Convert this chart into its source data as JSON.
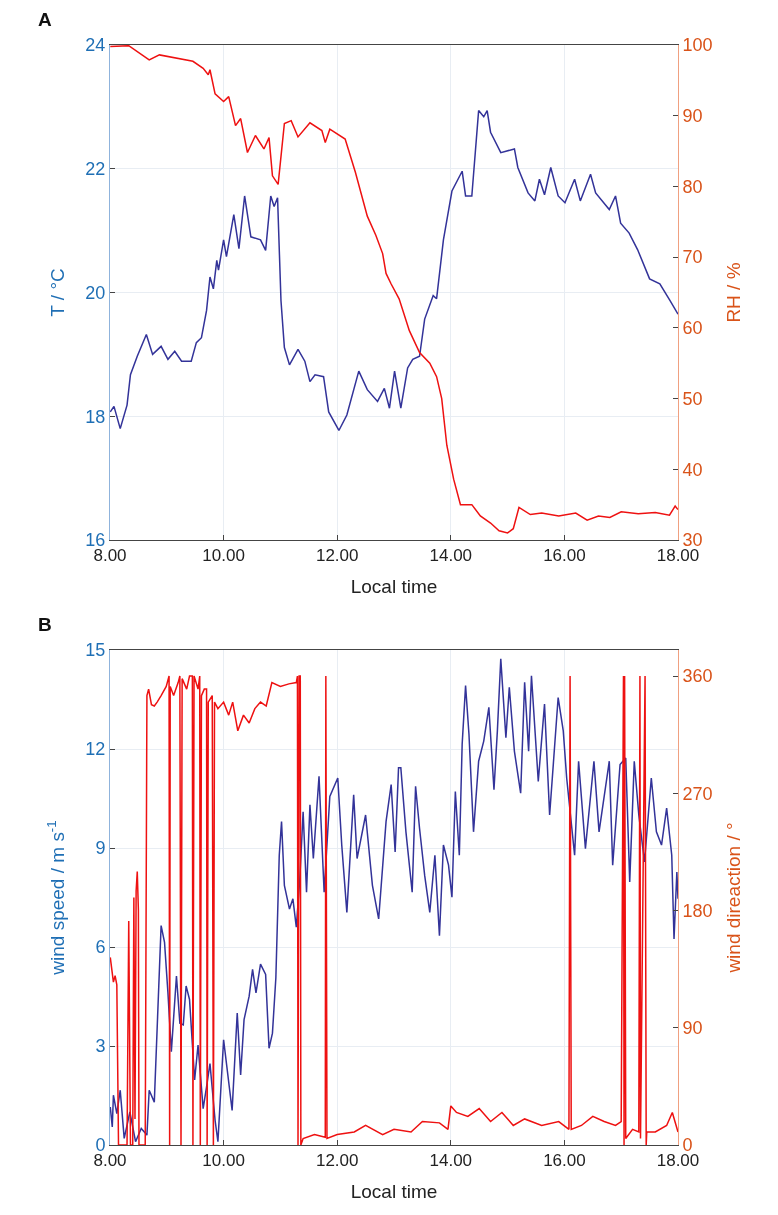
{
  "chart_data": [
    {
      "type": "line",
      "xlabel": "Local time",
      "ylabel": "T / °C",
      "y2label": "RH / %",
      "annotations": [
        "A"
      ],
      "xlim": [
        8,
        18
      ],
      "xticks": [
        {
          "value": 8,
          "label": "8.00"
        },
        {
          "value": 10,
          "label": "10.00"
        },
        {
          "value": 12,
          "label": "12.00"
        },
        {
          "value": 14,
          "label": "14.00"
        },
        {
          "value": 16,
          "label": "16.00"
        },
        {
          "value": 18,
          "label": "18.00"
        }
      ],
      "ylim": [
        16,
        24
      ],
      "yticks": [
        16,
        18,
        20,
        22,
        24
      ],
      "y2lim": [
        30,
        100
      ],
      "y2ticks": [
        30,
        40,
        50,
        60,
        70,
        80,
        90,
        100
      ],
      "grid": true,
      "line_style": "solid",
      "series": [
        {
          "color": "#333399",
          "x": [
            8.005,
            8.07,
            8.18,
            8.3,
            8.36,
            8.48,
            8.64,
            8.75,
            8.9,
            9.02,
            9.14,
            9.26,
            9.43,
            9.52,
            9.61,
            9.7,
            9.76,
            9.82,
            9.88,
            9.91,
            10.0,
            10.05,
            10.18,
            10.27,
            10.37,
            10.48,
            10.65,
            10.74,
            10.83,
            10.89,
            10.95,
            11.01,
            11.07,
            11.16,
            11.31,
            11.43,
            11.52,
            11.61,
            11.76,
            11.85,
            12.03,
            12.17,
            12.38,
            12.53,
            12.71,
            12.83,
            12.92,
            13.01,
            13.12,
            13.24,
            13.33,
            13.45,
            13.54,
            13.69,
            13.75,
            13.87,
            14.02,
            14.2,
            14.26,
            14.37,
            14.49,
            14.58,
            14.64,
            14.7,
            14.88,
            15.12,
            15.18,
            15.36,
            15.48,
            15.56,
            15.65,
            15.76,
            15.89,
            16.01,
            16.18,
            16.28,
            16.46,
            16.55,
            16.79,
            16.9,
            16.99,
            17.14,
            17.29,
            17.5,
            17.68,
            17.86,
            18.0
          ],
          "values": [
            18.07,
            18.16,
            17.8,
            18.18,
            18.67,
            18.97,
            19.32,
            19.0,
            19.13,
            18.92,
            19.05,
            18.89,
            18.89,
            19.19,
            19.27,
            19.71,
            20.25,
            20.06,
            20.52,
            20.36,
            20.85,
            20.58,
            21.26,
            20.71,
            21.56,
            20.9,
            20.85,
            20.68,
            21.56,
            21.39,
            21.53,
            19.87,
            19.11,
            18.83,
            19.08,
            18.89,
            18.56,
            18.67,
            18.64,
            18.07,
            17.77,
            18.02,
            18.73,
            18.43,
            18.24,
            18.45,
            18.13,
            18.73,
            18.13,
            18.78,
            18.92,
            18.97,
            19.57,
            19.95,
            19.9,
            20.85,
            21.64,
            21.96,
            21.56,
            21.56,
            22.94,
            22.84,
            22.94,
            22.59,
            22.26,
            22.32,
            22.02,
            21.61,
            21.48,
            21.83,
            21.58,
            22.02,
            21.56,
            21.45,
            21.83,
            21.48,
            21.91,
            21.61,
            21.34,
            21.56,
            21.12,
            20.96,
            20.69,
            20.22,
            20.14,
            19.87,
            19.65
          ]
        },
        {
          "color": "#ee1111",
          "axis": "y2",
          "x": [
            8.005,
            8.33,
            8.69,
            8.87,
            9.46,
            9.64,
            9.73,
            9.76,
            9.85,
            10.0,
            10.09,
            10.21,
            10.3,
            10.42,
            10.56,
            10.71,
            10.8,
            10.86,
            10.96,
            11.07,
            11.19,
            11.31,
            11.52,
            11.73,
            11.79,
            11.87,
            12.14,
            12.32,
            12.53,
            12.68,
            12.8,
            12.86,
            12.95,
            13.09,
            13.27,
            13.45,
            13.63,
            13.75,
            13.84,
            13.93,
            14.05,
            14.17,
            14.37,
            14.52,
            14.7,
            14.85,
            15.0,
            15.1,
            15.2,
            15.4,
            15.6,
            15.9,
            16.2,
            16.4,
            16.6,
            16.8,
            17.0,
            17.3,
            17.6,
            17.85,
            17.95,
            18.0
          ],
          "values": [
            99.8,
            99.9,
            97.9,
            98.6,
            97.7,
            96.7,
            95.8,
            96.5,
            93.1,
            92.0,
            92.7,
            88.6,
            89.6,
            84.8,
            87.2,
            85.3,
            86.9,
            81.5,
            80.3,
            88.9,
            89.3,
            87.0,
            89.0,
            87.9,
            86.2,
            88.1,
            86.7,
            82.0,
            75.8,
            73.1,
            70.5,
            67.7,
            66.2,
            64.1,
            59.6,
            56.5,
            55.0,
            53.1,
            50.0,
            43.4,
            38.6,
            35.0,
            35.0,
            33.4,
            32.4,
            31.3,
            31.0,
            31.6,
            34.6,
            33.6,
            33.8,
            33.4,
            33.8,
            32.8,
            33.4,
            33.2,
            34.0,
            33.7,
            33.9,
            33.5,
            34.8,
            34.3
          ]
        }
      ]
    },
    {
      "type": "line",
      "xlabel": "Local time",
      "ylabel": "wind speed / m s$^{-1}$",
      "y2label": "wind direaction / °",
      "annotations": [
        "B"
      ],
      "xlim": [
        8,
        18
      ],
      "xticks": [
        {
          "value": 8,
          "label": "8.00"
        },
        {
          "value": 10,
          "label": "10.00"
        },
        {
          "value": 12,
          "label": "12.00"
        },
        {
          "value": 14,
          "label": "14.00"
        },
        {
          "value": 16,
          "label": "16.00"
        },
        {
          "value": 18,
          "label": "18.00"
        }
      ],
      "ylim": [
        0,
        15
      ],
      "yticks": [
        0,
        3,
        6,
        9,
        12,
        15
      ],
      "y2lim": [
        0,
        380
      ],
      "y2ticks": [
        0,
        90,
        180,
        270,
        360
      ],
      "grid": true,
      "line_style": "solid",
      "series": [
        {
          "color": "#333399",
          "x": [
            8.005,
            8.04,
            8.06,
            8.12,
            8.18,
            8.25,
            8.35,
            8.45,
            8.55,
            8.65,
            8.69,
            8.78,
            8.9,
            8.96,
            9.02,
            9.08,
            9.17,
            9.23,
            9.29,
            9.34,
            9.4,
            9.49,
            9.55,
            9.64,
            9.7,
            9.76,
            9.85,
            9.9,
            10.0,
            10.15,
            10.24,
            10.3,
            10.36,
            10.45,
            10.51,
            10.57,
            10.65,
            10.74,
            10.8,
            10.86,
            10.92,
            10.98,
            11.02,
            11.07,
            11.16,
            11.22,
            11.28,
            11.34,
            11.4,
            11.46,
            11.52,
            11.58,
            11.68,
            11.77,
            11.87,
            12.01,
            12.08,
            12.17,
            12.29,
            12.35,
            12.5,
            12.62,
            12.73,
            12.86,
            12.95,
            13.02,
            13.08,
            13.12,
            13.21,
            13.32,
            13.38,
            13.45,
            13.54,
            13.63,
            13.72,
            13.8,
            13.87,
            13.96,
            14.02,
            14.08,
            14.15,
            14.2,
            14.26,
            14.32,
            14.4,
            14.49,
            14.58,
            14.67,
            14.76,
            14.82,
            14.88,
            14.97,
            15.03,
            15.12,
            15.23,
            15.3,
            15.37,
            15.42,
            15.54,
            15.65,
            15.74,
            15.89,
            15.98,
            16.04,
            16.18,
            16.25,
            16.37,
            16.52,
            16.61,
            16.79,
            16.85,
            16.98,
            17.08,
            17.15,
            17.23,
            17.31,
            17.41,
            17.53,
            17.62,
            17.71,
            17.8,
            17.89,
            17.93,
            17.98,
            18.0
          ],
          "values": [
            1.15,
            0.55,
            1.51,
            0.95,
            1.66,
            0.2,
            1.0,
            0.1,
            0.5,
            0.3,
            1.66,
            1.3,
            6.65,
            6.14,
            4.61,
            2.83,
            5.12,
            3.69,
            3.64,
            4.82,
            4.41,
            1.97,
            3.03,
            1.1,
            1.76,
            2.47,
            0.75,
            0.1,
            3.19,
            1.05,
            4.0,
            2.12,
            3.8,
            4.51,
            5.32,
            4.61,
            5.48,
            5.17,
            2.93,
            3.39,
            5.07,
            8.78,
            9.8,
            7.87,
            7.15,
            7.46,
            6.6,
            8.02,
            10.1,
            7.66,
            10.31,
            8.68,
            11.17,
            7.66,
            10.56,
            11.12,
            9.09,
            7.05,
            10.61,
            8.68,
            10.0,
            7.87,
            6.85,
            9.8,
            10.92,
            8.88,
            11.43,
            11.43,
            9.49,
            7.66,
            10.87,
            9.59,
            8.17,
            7.05,
            8.78,
            6.34,
            9.09,
            8.48,
            7.51,
            10.71,
            8.78,
            12.14,
            13.92,
            12.44,
            9.49,
            11.63,
            12.24,
            13.26,
            10.77,
            12.55,
            14.73,
            12.34,
            13.87,
            11.93,
            10.66,
            14.02,
            11.93,
            14.22,
            11.02,
            13.36,
            10.0,
            13.56,
            12.55,
            11.12,
            8.78,
            11.63,
            8.98,
            11.63,
            9.49,
            11.63,
            8.48,
            11.53,
            11.73,
            7.97,
            11.63,
            10.0,
            8.58,
            11.12,
            9.49,
            9.09,
            10.21,
            8.78,
            6.24,
            8.27,
            7.46
          ]
        },
        {
          "color": "#ee1111",
          "axis": "y2",
          "x": [
            8.005,
            8.06,
            8.09,
            8.12,
            8.15,
            8.3,
            8.33,
            8.36,
            8.4,
            8.42,
            8.44,
            8.46,
            8.48,
            8.5,
            8.51,
            8.62,
            8.65,
            8.68,
            8.73,
            8.78,
            8.83,
            8.9,
            8.99,
            9.04,
            9.05,
            9.06,
            9.12,
            9.2,
            9.23,
            9.25,
            9.27,
            9.35,
            9.4,
            9.45,
            9.46,
            9.48,
            9.55,
            9.58,
            9.59,
            9.61,
            9.66,
            9.7,
            9.71,
            9.73,
            9.8,
            9.82,
            9.84,
            9.9,
            10.0,
            10.09,
            10.16,
            10.25,
            10.35,
            10.45,
            10.55,
            10.65,
            10.75,
            10.85,
            11.0,
            11.15,
            11.28,
            11.3,
            11.31,
            11.33,
            11.35,
            11.36,
            11.4,
            11.6,
            11.79,
            11.8,
            11.82,
            12.0,
            12.3,
            12.5,
            12.8,
            13.0,
            13.3,
            13.5,
            13.8,
            13.95,
            14.0,
            14.1,
            14.3,
            14.5,
            14.7,
            14.9,
            15.1,
            15.3,
            15.6,
            15.9,
            16.08,
            16.1,
            16.12,
            16.3,
            16.5,
            16.7,
            16.9,
            17.0,
            17.04,
            17.05,
            17.06,
            17.08,
            17.2,
            17.31,
            17.33,
            17.34,
            17.42,
            17.44,
            17.45,
            17.6,
            17.8,
            17.9,
            18.0
          ],
          "values": [
            144,
            125,
            130,
            123,
            0,
            0,
            172,
            0,
            0,
            190,
            20,
            195,
            210,
            180,
            0,
            0,
            345,
            350,
            338,
            337,
            340,
            345,
            352,
            360,
            0,
            352,
            345,
            355,
            360,
            0,
            358,
            350,
            360,
            360,
            0,
            360,
            350,
            360,
            0,
            345,
            350,
            350,
            0,
            340,
            345,
            0,
            340,
            335,
            340,
            330,
            340,
            318,
            330,
            324,
            335,
            340,
            337,
            355,
            352,
            354,
            355,
            360,
            0,
            360,
            360,
            0,
            5,
            8,
            6,
            360,
            5,
            8,
            10,
            15,
            8,
            12,
            10,
            18,
            17,
            12,
            30,
            25,
            22,
            28,
            18,
            25,
            15,
            20,
            15,
            18,
            12,
            360,
            12,
            15,
            22,
            18,
            15,
            18,
            360,
            0,
            360,
            5,
            12,
            10,
            360,
            5,
            360,
            0,
            10,
            10,
            15,
            25,
            10
          ]
        }
      ]
    }
  ]
}
